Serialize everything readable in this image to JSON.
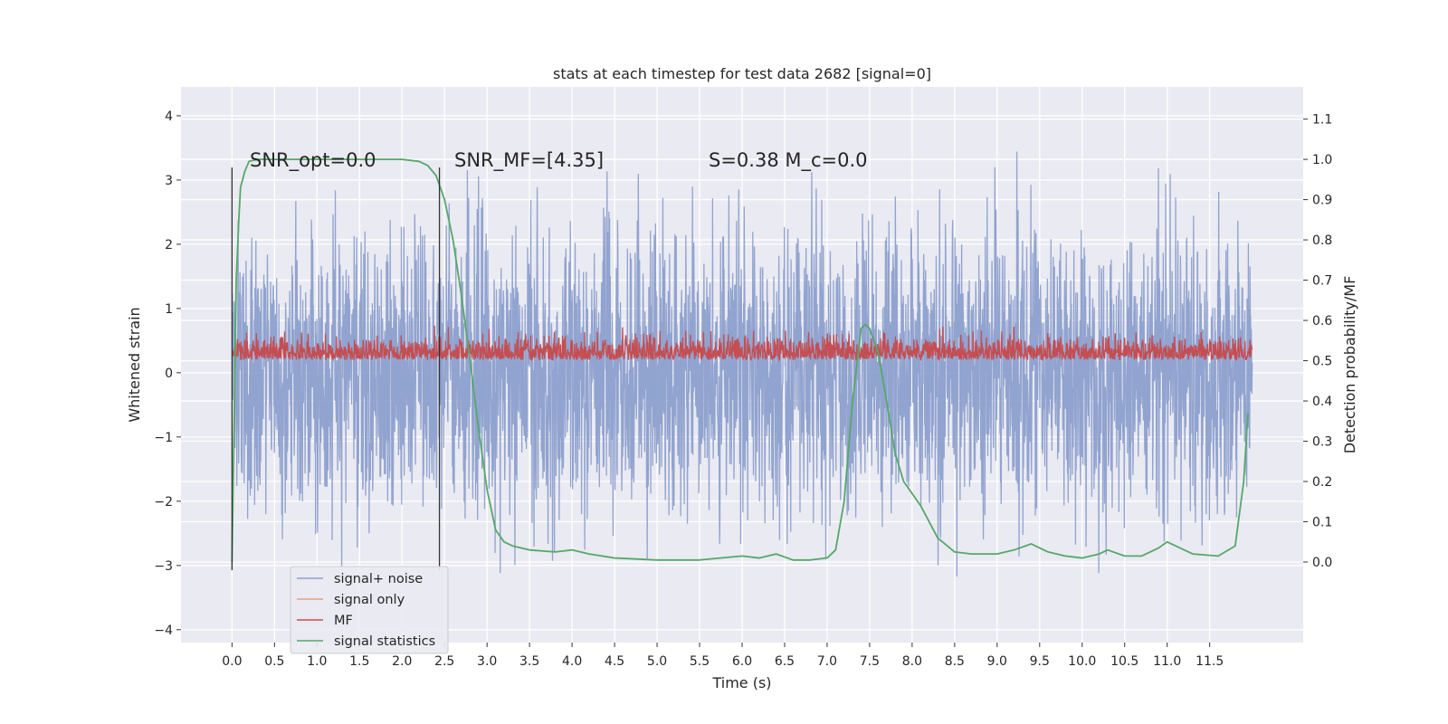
{
  "chart_data": {
    "type": "line",
    "title": "stats at each timestep for test data 2682 [signal=0]",
    "xlabel": "Time (s)",
    "ylabel": "Whitened strain",
    "ylabel_right": "Detection probability/MF",
    "xlim": [
      -0.6,
      12.6
    ],
    "ylim": [
      -4.2,
      4.45
    ],
    "ylim_right": [
      -0.2,
      1.18
    ],
    "x_ticks": [
      "0.0",
      "0.5",
      "1.0",
      "1.5",
      "2.0",
      "2.5",
      "3.0",
      "3.5",
      "4.0",
      "4.5",
      "5.0",
      "5.5",
      "6.0",
      "6.5",
      "7.0",
      "7.5",
      "8.0",
      "8.5",
      "9.0",
      "9.5",
      "10.0",
      "10.5",
      "11.0",
      "11.5"
    ],
    "y_ticks": [
      "4",
      "3",
      "2",
      "1",
      "0",
      "−1",
      "−2",
      "−3",
      "−4"
    ],
    "y_ticks_right": [
      "1.1",
      "1.0",
      "0.9",
      "0.8",
      "0.7",
      "0.6",
      "0.5",
      "0.4",
      "0.3",
      "0.2",
      "0.1",
      "0.0"
    ],
    "grid": true,
    "legend_position": "lower-left",
    "annotations": [
      {
        "text": "SNR_opt=0.0"
      },
      {
        "text": "SNR_MF=[4.35]"
      },
      {
        "text": "S=0.38   M_c=0.0"
      }
    ],
    "vlines": [
      0.0,
      2.44
    ],
    "series": [
      {
        "name": "signal+ noise",
        "color": "#8c9fcc",
        "axis": "left",
        "duration": 12.0,
        "noise_std": 1.1
      },
      {
        "name": "signal only",
        "color": "#dd8452",
        "axis": "left",
        "values": []
      },
      {
        "name": "MF",
        "color": "#c44e52",
        "axis": "left",
        "duration": 12.0,
        "baseline": 0.3
      },
      {
        "name": "signal statistics",
        "color": "#55a868",
        "axis": "right",
        "x": [
          0.0,
          0.05,
          0.08,
          0.1,
          0.15,
          0.2,
          0.3,
          0.5,
          1.0,
          1.5,
          2.0,
          2.2,
          2.3,
          2.4,
          2.5,
          2.6,
          2.7,
          2.8,
          2.9,
          3.0,
          3.1,
          3.2,
          3.3,
          3.5,
          3.8,
          4.0,
          4.2,
          4.5,
          5.0,
          5.5,
          6.0,
          6.2,
          6.4,
          6.6,
          6.8,
          7.0,
          7.1,
          7.2,
          7.3,
          7.4,
          7.45,
          7.5,
          7.55,
          7.6,
          7.7,
          7.8,
          7.9,
          8.1,
          8.3,
          8.5,
          8.7,
          9.0,
          9.2,
          9.4,
          9.6,
          9.8,
          10.0,
          10.2,
          10.3,
          10.5,
          10.7,
          10.9,
          11.0,
          11.1,
          11.3,
          11.6,
          11.8,
          11.9,
          11.95
        ],
        "y": [
          0.0,
          0.7,
          0.85,
          0.93,
          0.97,
          0.995,
          1.0,
          1.0,
          1.0,
          1.0,
          1.0,
          0.995,
          0.985,
          0.96,
          0.9,
          0.8,
          0.66,
          0.5,
          0.33,
          0.18,
          0.08,
          0.05,
          0.04,
          0.03,
          0.025,
          0.03,
          0.02,
          0.01,
          0.005,
          0.005,
          0.015,
          0.01,
          0.02,
          0.005,
          0.005,
          0.01,
          0.03,
          0.15,
          0.4,
          0.58,
          0.59,
          0.58,
          0.55,
          0.52,
          0.4,
          0.27,
          0.2,
          0.14,
          0.06,
          0.025,
          0.02,
          0.02,
          0.03,
          0.045,
          0.025,
          0.015,
          0.01,
          0.02,
          0.03,
          0.015,
          0.015,
          0.035,
          0.05,
          0.04,
          0.02,
          0.015,
          0.04,
          0.2,
          0.37
        ]
      }
    ]
  }
}
